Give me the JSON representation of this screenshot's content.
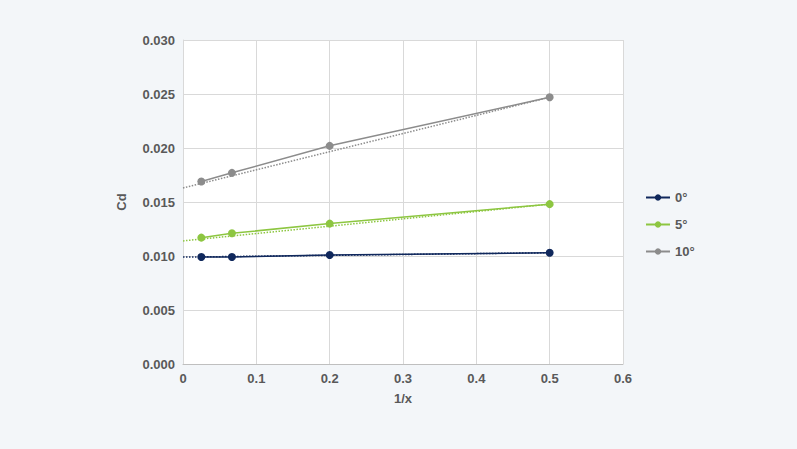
{
  "chart_data": {
    "type": "line",
    "x_label": "1/x",
    "y_label": "Cd",
    "x": [
      0.025,
      0.0667,
      0.2,
      0.5
    ],
    "series": [
      {
        "name": "0°",
        "color": "#10285c",
        "values": [
          0.0099,
          0.0099,
          0.0101,
          0.0103
        ],
        "marker": "circle",
        "trendline": {
          "x": [
            0,
            0.5
          ],
          "values": [
            0.0099,
            0.0103
          ]
        }
      },
      {
        "name": "5°",
        "color": "#8dc641",
        "values": [
          0.0117,
          0.0121,
          0.013,
          0.0148
        ],
        "marker": "circle",
        "trendline": {
          "x": [
            0,
            0.5
          ],
          "values": [
            0.0114,
            0.0148
          ]
        }
      },
      {
        "name": "10°",
        "color": "#8c8c8c",
        "values": [
          0.0169,
          0.0177,
          0.0202,
          0.0247
        ],
        "marker": "circle",
        "trendline": {
          "x": [
            0,
            0.5
          ],
          "values": [
            0.0163,
            0.0247
          ]
        }
      }
    ],
    "xlim": [
      0,
      0.6
    ],
    "xticks": [
      0,
      0.1,
      0.2,
      0.3,
      0.4,
      0.5,
      0.6
    ],
    "ylim": [
      0,
      0.03
    ],
    "yticks": [
      {
        "value": 0,
        "label": "0.000"
      },
      {
        "value": 0.005,
        "label": "0.005"
      },
      {
        "value": 0.01,
        "label": "0.010"
      },
      {
        "value": 0.015,
        "label": "0.015"
      },
      {
        "value": 0.02,
        "label": "0.020"
      },
      {
        "value": 0.025,
        "label": "0.025"
      },
      {
        "value": 0.03,
        "label": "0.030"
      }
    ],
    "grid": true,
    "legend": "right"
  }
}
